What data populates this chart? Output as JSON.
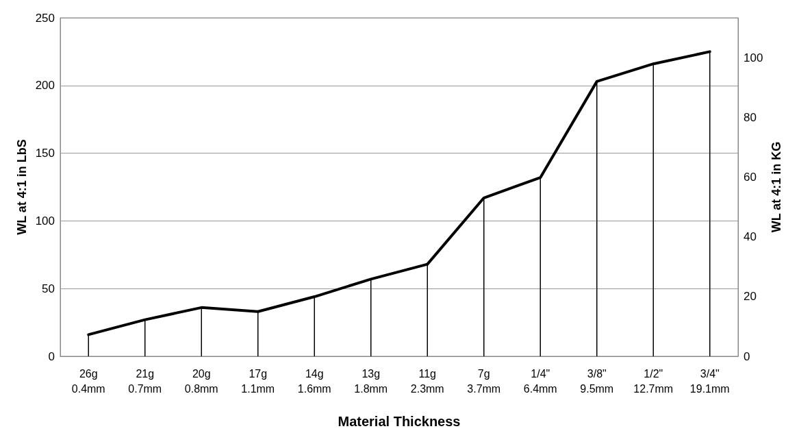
{
  "chart_data": {
    "type": "line",
    "xlabel": "Material Thickness",
    "ylabel": "WL at 4:1 in LbS",
    "y2label": "WL at 4:1 in KG",
    "categories": [
      "26g\n0.4mm",
      "21g\n0.7mm",
      "20g\n0.8mm",
      "17g\n1.1mm",
      "14g\n1.6mm",
      "13g\n1.8mm",
      "11g\n2.3mm",
      "7g\n3.7mm",
      "1/4\"\n6.4mm",
      "3/8\"\n9.5mm",
      "1/2\"\n12.7mm",
      "3/4\"\n19.1mm"
    ],
    "series": [
      {
        "color": "#000000",
        "values": [
          16,
          27,
          36,
          33,
          44,
          57,
          68,
          117,
          132,
          203,
          216,
          225
        ]
      },
      {
        "type": "bar",
        "color": "#000000",
        "values": [
          16,
          27,
          36,
          33,
          44,
          57,
          68,
          117,
          132,
          203,
          216,
          225
        ]
      }
    ],
    "ylim": [
      0,
      250
    ],
    "yticks": [
      0,
      50,
      100,
      150,
      200,
      250
    ],
    "y2lim": [
      0,
      113.4
    ],
    "y2ticks": [
      0,
      20,
      40,
      60,
      80,
      100
    ],
    "grid": "y",
    "marker": "none",
    "line_style": "solid"
  }
}
